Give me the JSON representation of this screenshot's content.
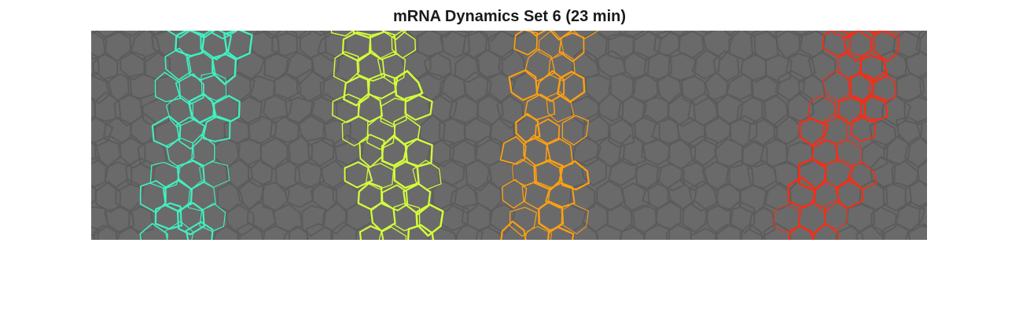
{
  "figure": {
    "title": "mRNA Dynamics Set 6 (23 min)",
    "background_color": "#ffffff",
    "tissue_color": "#6a6a6a",
    "membrane_color": "#5c5c5c",
    "stripe_colors": [
      "#40f0c0",
      "#d4ff3a",
      "#ffa010",
      "#ff2a10"
    ]
  }
}
